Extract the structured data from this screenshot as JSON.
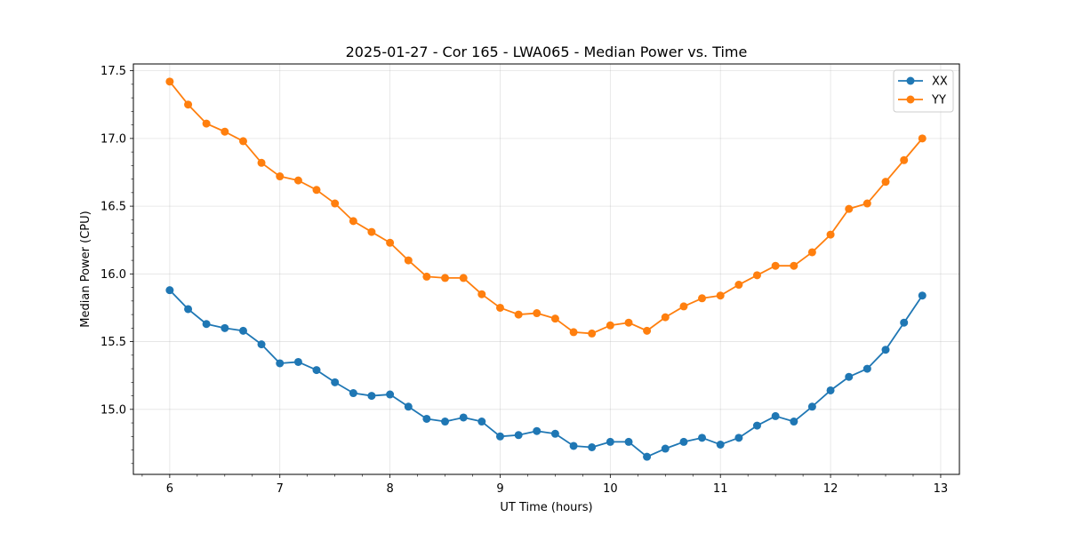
{
  "chart_data": {
    "type": "line",
    "title": "2025-01-27 - Cor 165 - LWA065 - Median Power vs. Time",
    "xlabel": "UT Time (hours)",
    "ylabel": "Median Power (CPU)",
    "xlim": [
      5.67,
      13.17
    ],
    "ylim": [
      14.52,
      17.55
    ],
    "xticks": [
      6,
      7,
      8,
      9,
      10,
      11,
      12,
      13
    ],
    "yticks": [
      15.0,
      15.5,
      16.0,
      16.5,
      17.0,
      17.5
    ],
    "ytick_labels": [
      "15.0",
      "15.5",
      "16.0",
      "16.5",
      "17.0",
      "17.5"
    ],
    "grid": true,
    "legend_position": "top-right",
    "x": [
      6.0,
      6.167,
      6.333,
      6.5,
      6.667,
      6.833,
      7.0,
      7.167,
      7.333,
      7.5,
      7.667,
      7.833,
      8.0,
      8.167,
      8.333,
      8.5,
      8.667,
      8.833,
      9.0,
      9.167,
      9.333,
      9.5,
      9.667,
      9.833,
      10.0,
      10.167,
      10.333,
      10.5,
      10.667,
      10.833,
      11.0,
      11.167,
      11.333,
      11.5,
      11.667,
      11.833,
      12.0,
      12.167,
      12.333,
      12.5,
      12.667,
      12.833
    ],
    "series": [
      {
        "name": "XX",
        "color": "#1f77b4",
        "values": [
          15.88,
          15.74,
          15.63,
          15.6,
          15.58,
          15.48,
          15.34,
          15.35,
          15.29,
          15.2,
          15.12,
          15.1,
          15.11,
          15.02,
          14.93,
          14.91,
          14.94,
          14.91,
          14.8,
          14.81,
          14.84,
          14.82,
          14.73,
          14.72,
          14.76,
          14.76,
          14.65,
          14.71,
          14.76,
          14.79,
          14.74,
          14.79,
          14.88,
          14.95,
          14.91,
          15.02,
          15.14,
          15.24,
          15.3,
          15.44,
          15.64,
          15.84
        ]
      },
      {
        "name": "YY",
        "color": "#ff7f0e",
        "values": [
          17.42,
          17.25,
          17.11,
          17.05,
          16.98,
          16.82,
          16.72,
          16.69,
          16.62,
          16.52,
          16.39,
          16.31,
          16.23,
          16.1,
          15.98,
          15.97,
          15.97,
          15.85,
          15.75,
          15.7,
          15.71,
          15.67,
          15.57,
          15.56,
          15.62,
          15.64,
          15.58,
          15.68,
          15.76,
          15.82,
          15.84,
          15.92,
          15.99,
          16.06,
          16.06,
          16.16,
          16.29,
          16.48,
          16.52,
          16.68,
          16.84,
          17.0
        ]
      }
    ]
  }
}
